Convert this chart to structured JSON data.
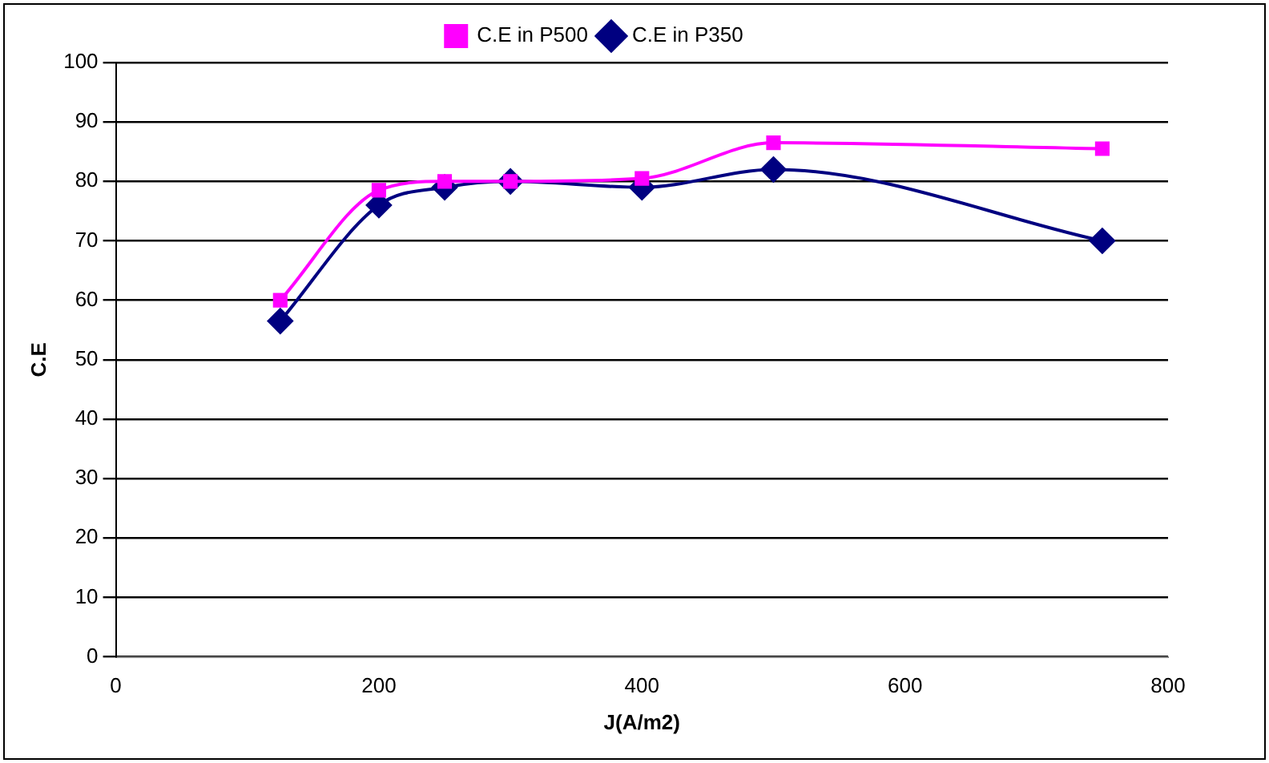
{
  "chart_data": {
    "type": "line",
    "xlabel": "J(A/m2)",
    "ylabel": "C.E",
    "x": [
      125,
      200,
      250,
      300,
      400,
      500,
      750
    ],
    "series": [
      {
        "name": "C.E in P350",
        "color": "#000080",
        "marker": "diamond",
        "values": [
          56.5,
          76,
          79,
          80,
          79,
          82,
          70
        ]
      },
      {
        "name": "C.E in P500",
        "color": "#ff00ff",
        "marker": "square",
        "values": [
          60,
          78.5,
          80,
          80,
          80.5,
          86.5,
          85.5
        ]
      }
    ],
    "xlim": [
      0,
      800
    ],
    "xticks": [
      0,
      200,
      400,
      600,
      800
    ],
    "ylim": [
      0,
      100
    ],
    "yticks": [
      0,
      10,
      20,
      30,
      40,
      50,
      60,
      70,
      80,
      90,
      100
    ],
    "grid": "y",
    "legend": "top"
  }
}
